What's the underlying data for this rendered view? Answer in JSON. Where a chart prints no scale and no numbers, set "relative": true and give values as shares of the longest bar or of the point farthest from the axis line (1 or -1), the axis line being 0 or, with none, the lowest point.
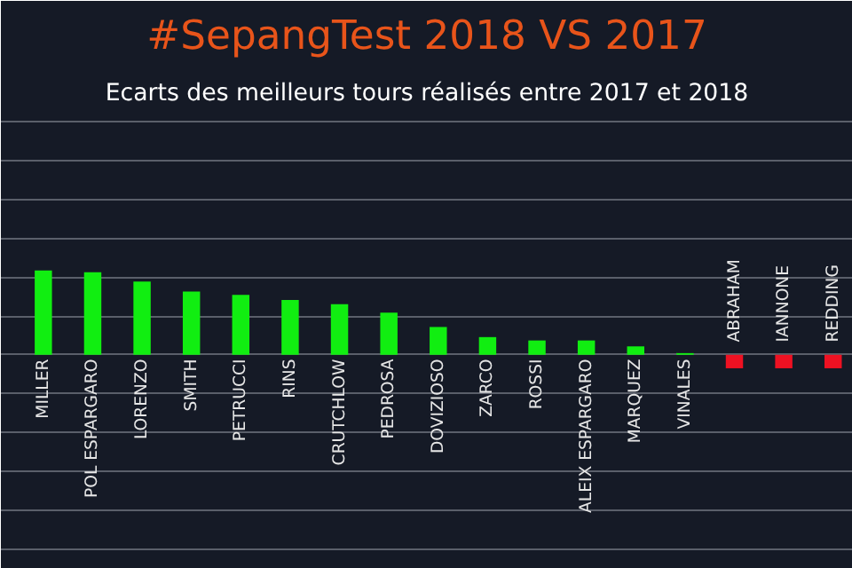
{
  "chart_data": {
    "type": "bar",
    "title": "#SepangTest 2018 VS 2017",
    "subtitle": "Ecarts des meilleurs tours réalisés entre 2017 et 2018",
    "relative": true,
    "grid": "y",
    "categories": [
      "MILLER",
      "POL ESPARGARO",
      "LORENZO",
      "SMITH",
      "PETRUCCI",
      "RINS",
      "CRUTCHLOW",
      "PEDROSA",
      "DOVIZIOSO",
      "ZARCO",
      "ROSSI",
      "ALEIX ESPARGARO",
      "MARQUEZ",
      "VINALES",
      "ABRAHAM",
      "IANNONE",
      "REDDING"
    ],
    "values": [
      1,
      0.98,
      0.87,
      0.75,
      0.71,
      0.65,
      0.6,
      0.5,
      0.33,
      0.21,
      0.17,
      0.17,
      0.1,
      0.02,
      -0.16,
      -0.16,
      -0.16
    ],
    "colors": [
      "#11ee11",
      "#11ee11",
      "#11ee11",
      "#11ee11",
      "#11ee11",
      "#11ee11",
      "#11ee11",
      "#11ee11",
      "#11ee11",
      "#11ee11",
      "#11ee11",
      "#11ee11",
      "#11ee11",
      "#11ee11",
      "#ee1122",
      "#ee1122",
      "#ee1122"
    ]
  }
}
